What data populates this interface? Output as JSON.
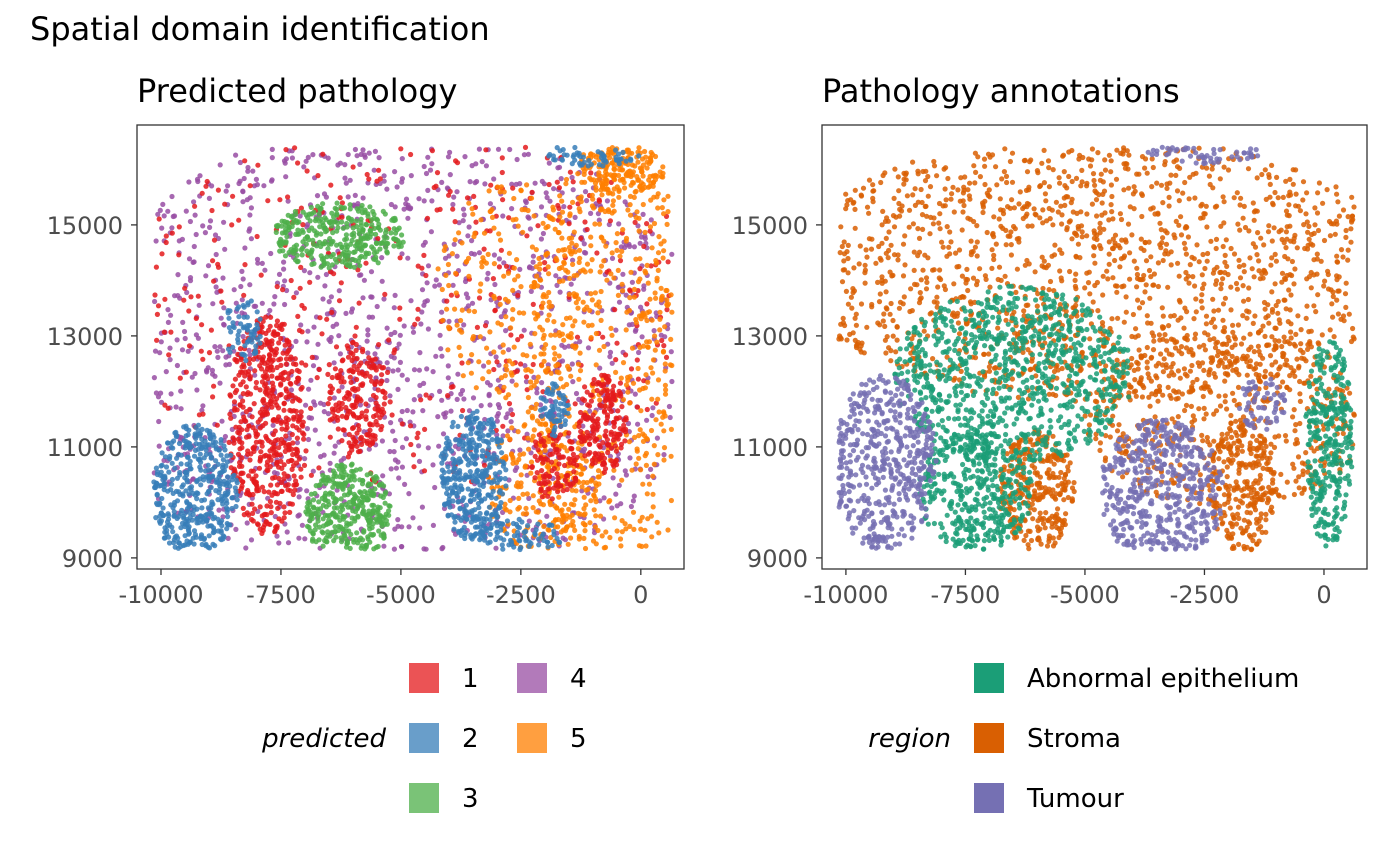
{
  "figure_title": "Spatial domain identification",
  "chart_data": [
    {
      "type": "scatter",
      "title": "Predicted pathology",
      "xlabel": "",
      "ylabel": "",
      "xlim": [
        -10500,
        900
      ],
      "ylim": [
        8800,
        16800
      ],
      "x_ticks": [
        -10000,
        -7500,
        -5000,
        -2500,
        0
      ],
      "x_tick_labels": [
        "-10000",
        "-7500",
        "-5000",
        "-2500",
        "0"
      ],
      "y_ticks": [
        9000,
        11000,
        13000,
        15000
      ],
      "y_tick_labels": [
        "9000",
        "11000",
        "13000",
        "15000"
      ],
      "legend": {
        "title": "predicted",
        "placement": "bottom",
        "entries": [
          {
            "label": "1",
            "color": "#e41a1c"
          },
          {
            "label": "2",
            "color": "#377eb8"
          },
          {
            "label": "3",
            "color": "#4daf4a"
          },
          {
            "label": "4",
            "color": "#984ea3"
          },
          {
            "label": "5",
            "color": "#ff7f00"
          }
        ]
      },
      "regions": [
        {
          "label": "4",
          "cx": -5000,
          "cy": 12700,
          "rx": 6500,
          "ry": 4200,
          "n": 1500
        },
        {
          "label": "1",
          "cx": -4800,
          "cy": 13500,
          "rx": 6200,
          "ry": 3300,
          "n": 450
        },
        {
          "label": "5",
          "cx": -600,
          "cy": 12500,
          "rx": 1800,
          "ry": 4000,
          "n": 600
        },
        {
          "label": "5",
          "cx": -2700,
          "cy": 13800,
          "rx": 1600,
          "ry": 2000,
          "n": 200
        },
        {
          "label": "5",
          "cx": -400,
          "cy": 16000,
          "rx": 900,
          "ry": 450,
          "n": 160
        },
        {
          "label": "5",
          "cx": -2000,
          "cy": 10300,
          "rx": 1200,
          "ry": 1300,
          "n": 220
        },
        {
          "label": "1",
          "cx": -7800,
          "cy": 11400,
          "rx": 800,
          "ry": 2000,
          "n": 480
        },
        {
          "label": "1",
          "cx": -5900,
          "cy": 11900,
          "rx": 600,
          "ry": 1000,
          "n": 180
        },
        {
          "label": "1",
          "cx": -800,
          "cy": 11400,
          "rx": 500,
          "ry": 900,
          "n": 180
        },
        {
          "label": "1",
          "cx": -1800,
          "cy": 10700,
          "rx": 500,
          "ry": 700,
          "n": 100
        },
        {
          "label": "2",
          "cx": -9300,
          "cy": 10200,
          "rx": 900,
          "ry": 1200,
          "n": 420
        },
        {
          "label": "2",
          "cx": -3500,
          "cy": 10500,
          "rx": 700,
          "ry": 1200,
          "n": 360
        },
        {
          "label": "2",
          "cx": -1800,
          "cy": 11700,
          "rx": 300,
          "ry": 500,
          "n": 60
        },
        {
          "label": "2",
          "cx": -8300,
          "cy": 13100,
          "rx": 400,
          "ry": 600,
          "n": 60
        },
        {
          "label": "2",
          "cx": -2500,
          "cy": 9400,
          "rx": 900,
          "ry": 300,
          "n": 80
        },
        {
          "label": "2",
          "cx": -1000,
          "cy": 16300,
          "rx": 1000,
          "ry": 250,
          "n": 80
        },
        {
          "label": "3",
          "cx": -6300,
          "cy": 14800,
          "rx": 1400,
          "ry": 600,
          "n": 320
        },
        {
          "label": "3",
          "cx": -6100,
          "cy": 9800,
          "rx": 900,
          "ry": 900,
          "n": 380
        }
      ]
    },
    {
      "type": "scatter",
      "title": "Pathology annotations",
      "xlabel": "",
      "ylabel": "",
      "xlim": [
        -10500,
        900
      ],
      "ylim": [
        8800,
        16800
      ],
      "x_ticks": [
        -10000,
        -7500,
        -5000,
        -2500,
        0
      ],
      "x_tick_labels": [
        "-10000",
        "-7500",
        "-5000",
        "-2500",
        "0"
      ],
      "y_ticks": [
        9000,
        11000,
        13000,
        15000
      ],
      "y_tick_labels": [
        "9000",
        "11000",
        "13000",
        "15000"
      ],
      "legend": {
        "title": "region",
        "placement": "bottom",
        "entries": [
          {
            "label": "Abnormal epithelium",
            "color": "#1b9e77"
          },
          {
            "label": "Stroma",
            "color": "#d95f02"
          },
          {
            "label": "Tumour",
            "color": "#7570b3"
          }
        ]
      },
      "regions": [
        {
          "label": "Stroma",
          "cx": -4800,
          "cy": 14200,
          "rx": 6500,
          "ry": 2400,
          "n": 1700
        },
        {
          "label": "Stroma",
          "cx": -2000,
          "cy": 11500,
          "rx": 3000,
          "ry": 1600,
          "n": 550
        },
        {
          "label": "Stroma",
          "cx": -6000,
          "cy": 10200,
          "rx": 800,
          "ry": 1100,
          "n": 300
        },
        {
          "label": "Stroma",
          "cx": -1700,
          "cy": 10300,
          "rx": 700,
          "ry": 1200,
          "n": 220
        },
        {
          "label": "Abnormal epithelium",
          "cx": -6500,
          "cy": 12300,
          "rx": 2500,
          "ry": 1600,
          "n": 900
        },
        {
          "label": "Abnormal epithelium",
          "cx": -7300,
          "cy": 10200,
          "rx": 1200,
          "ry": 1100,
          "n": 400
        },
        {
          "label": "Abnormal epithelium",
          "cx": 100,
          "cy": 11100,
          "rx": 500,
          "ry": 1900,
          "n": 320
        },
        {
          "label": "Tumour",
          "cx": -9200,
          "cy": 10700,
          "rx": 1100,
          "ry": 1600,
          "n": 520
        },
        {
          "label": "Tumour",
          "cx": -3400,
          "cy": 10200,
          "rx": 1300,
          "ry": 1300,
          "n": 520
        },
        {
          "label": "Tumour",
          "cx": -1300,
          "cy": 11800,
          "rx": 500,
          "ry": 500,
          "n": 60
        },
        {
          "label": "Tumour",
          "cx": -2500,
          "cy": 16300,
          "rx": 1200,
          "ry": 200,
          "n": 70
        }
      ]
    }
  ]
}
